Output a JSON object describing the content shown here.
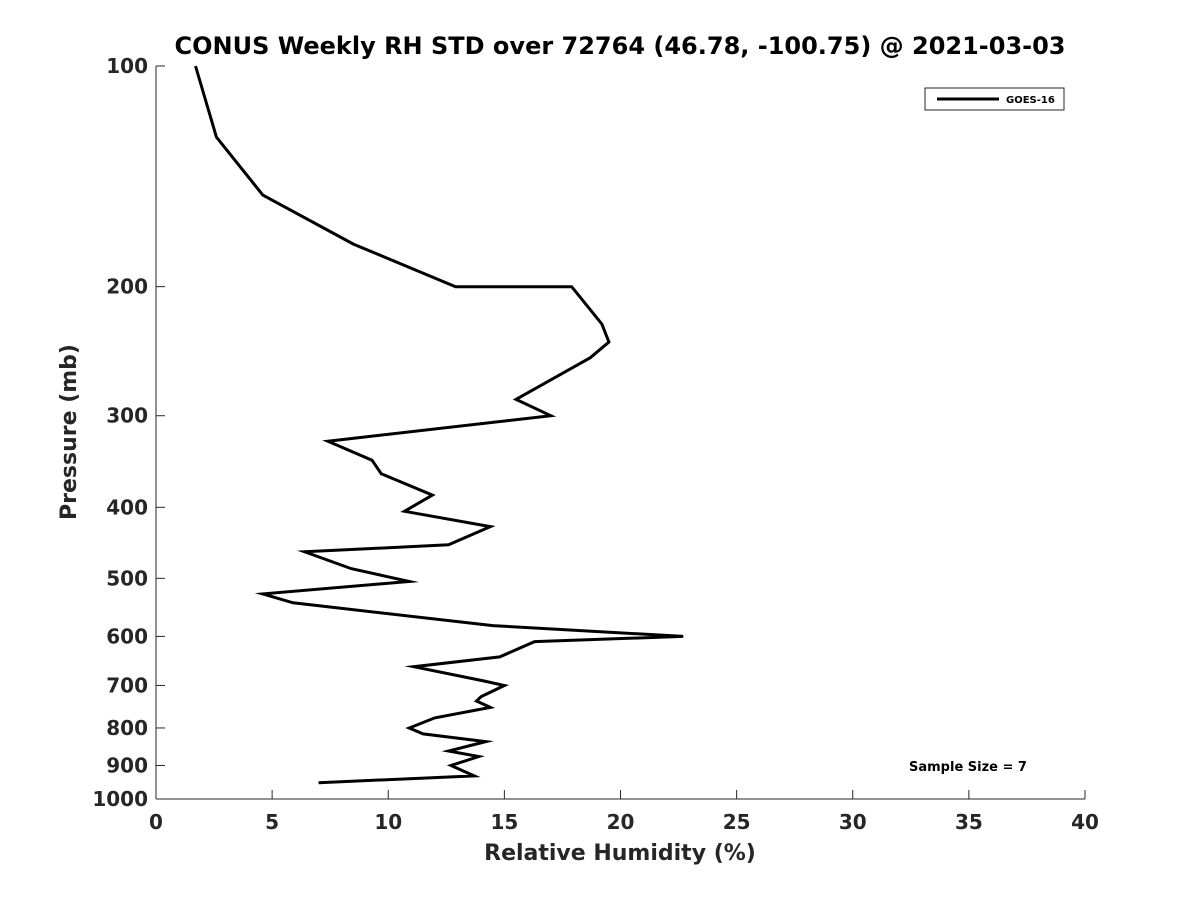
{
  "chart_data": {
    "type": "line",
    "title": "CONUS Weekly RH STD over 72764 (46.78, -100.75) @ 2021-03-03",
    "xlabel": "Relative Humidity (%)",
    "ylabel": "Pressure (mb)",
    "xlim": [
      0,
      40
    ],
    "ylim": [
      100,
      1000
    ],
    "y_scale": "log",
    "y_reversed": true,
    "x_ticks": [
      0,
      5,
      10,
      15,
      20,
      25,
      30,
      35,
      40
    ],
    "y_ticks": [
      100,
      200,
      300,
      400,
      500,
      600,
      700,
      800,
      900,
      1000
    ],
    "grid": false,
    "legend_position": "top-right",
    "annotation": "Sample Size = 7",
    "series": [
      {
        "name": "GOES-16",
        "color": "#000000",
        "points": [
          [
            1.7,
            100
          ],
          [
            2.6,
            125
          ],
          [
            4.6,
            150
          ],
          [
            8.5,
            175
          ],
          [
            12.9,
            200
          ],
          [
            17.9,
            200
          ],
          [
            19.2,
            225
          ],
          [
            19.5,
            238
          ],
          [
            18.7,
            250
          ],
          [
            15.5,
            285
          ],
          [
            17.0,
            300
          ],
          [
            7.4,
            325
          ],
          [
            9.3,
            345
          ],
          [
            9.7,
            360
          ],
          [
            11.9,
            385
          ],
          [
            10.7,
            405
          ],
          [
            14.4,
            425
          ],
          [
            12.6,
            450
          ],
          [
            6.4,
            460
          ],
          [
            8.4,
            485
          ],
          [
            10.9,
            505
          ],
          [
            4.6,
            525
          ],
          [
            5.9,
            540
          ],
          [
            14.5,
            580
          ],
          [
            22.7,
            600
          ],
          [
            16.3,
            610
          ],
          [
            14.8,
            640
          ],
          [
            11.1,
            660
          ],
          [
            14.1,
            690
          ],
          [
            15.0,
            700
          ],
          [
            14.0,
            725
          ],
          [
            13.8,
            735
          ],
          [
            14.4,
            750
          ],
          [
            12.0,
            775
          ],
          [
            10.9,
            800
          ],
          [
            11.5,
            815
          ],
          [
            14.2,
            835
          ],
          [
            12.6,
            860
          ],
          [
            13.9,
            875
          ],
          [
            12.7,
            900
          ],
          [
            13.7,
            930
          ],
          [
            7.0,
            950
          ]
        ]
      }
    ]
  }
}
